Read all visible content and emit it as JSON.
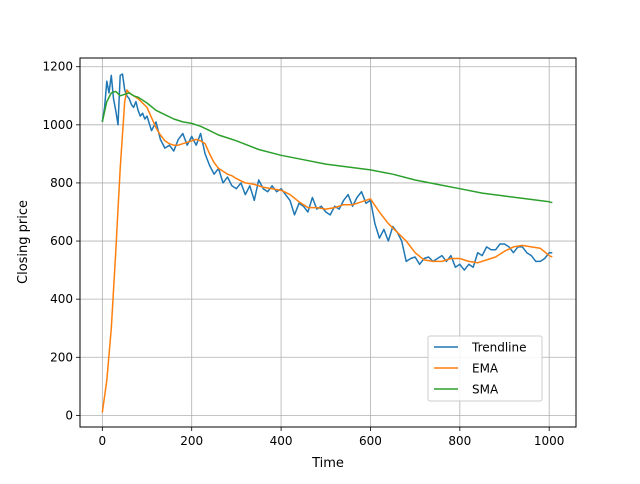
{
  "chart_data": {
    "type": "line",
    "title": "",
    "xlabel": "Time",
    "ylabel": "Closing price",
    "xlim": [
      -50,
      1060
    ],
    "ylim": [
      -40,
      1230
    ],
    "x_ticks": [
      0,
      200,
      400,
      600,
      800,
      1000
    ],
    "y_ticks": [
      0,
      200,
      400,
      600,
      800,
      1000,
      1200
    ],
    "grid": true,
    "legend_position": "lower-right",
    "series": [
      {
        "name": "Trendline",
        "color": "#1f77b4",
        "x": [
          0,
          5,
          10,
          15,
          20,
          25,
          30,
          35,
          40,
          45,
          50,
          55,
          60,
          65,
          70,
          75,
          80,
          85,
          90,
          95,
          100,
          110,
          120,
          130,
          140,
          150,
          160,
          170,
          180,
          190,
          200,
          210,
          220,
          230,
          240,
          250,
          260,
          270,
          280,
          290,
          300,
          310,
          320,
          330,
          340,
          350,
          360,
          370,
          380,
          390,
          400,
          410,
          420,
          430,
          440,
          450,
          460,
          470,
          480,
          490,
          500,
          510,
          520,
          530,
          540,
          550,
          560,
          570,
          580,
          590,
          600,
          610,
          620,
          630,
          640,
          650,
          660,
          670,
          680,
          690,
          700,
          710,
          720,
          730,
          740,
          750,
          760,
          770,
          780,
          790,
          800,
          810,
          820,
          830,
          840,
          850,
          860,
          870,
          880,
          890,
          900,
          910,
          920,
          930,
          940,
          950,
          960,
          970,
          980,
          990,
          1000,
          1007
        ],
        "values": [
          1010,
          1060,
          1150,
          1110,
          1170,
          1090,
          1050,
          1000,
          1170,
          1175,
          1120,
          1100,
          1090,
          1070,
          1060,
          1080,
          1050,
          1030,
          1040,
          1020,
          1030,
          980,
          1010,
          950,
          920,
          930,
          910,
          950,
          970,
          930,
          960,
          930,
          970,
          900,
          860,
          830,
          850,
          800,
          820,
          790,
          780,
          800,
          760,
          790,
          740,
          810,
          780,
          770,
          790,
          770,
          780,
          760,
          740,
          690,
          730,
          720,
          700,
          750,
          710,
          720,
          700,
          690,
          720,
          710,
          740,
          760,
          720,
          750,
          770,
          730,
          740,
          660,
          610,
          640,
          600,
          650,
          630,
          600,
          530,
          540,
          545,
          520,
          540,
          545,
          530,
          540,
          550,
          530,
          550,
          510,
          520,
          500,
          520,
          510,
          560,
          550,
          580,
          570,
          570,
          590,
          590,
          580,
          560,
          580,
          580,
          560,
          550,
          530,
          530,
          540,
          560,
          560
        ]
      },
      {
        "name": "EMA",
        "color": "#ff7f0e",
        "x": [
          0,
          10,
          20,
          30,
          40,
          50,
          55,
          60,
          70,
          80,
          90,
          100,
          110,
          120,
          130,
          140,
          150,
          160,
          170,
          180,
          190,
          200,
          210,
          220,
          230,
          240,
          250,
          260,
          270,
          280,
          290,
          300,
          320,
          340,
          360,
          380,
          400,
          420,
          440,
          460,
          480,
          500,
          520,
          540,
          560,
          580,
          600,
          620,
          640,
          660,
          680,
          700,
          720,
          740,
          760,
          780,
          800,
          820,
          840,
          860,
          880,
          900,
          920,
          940,
          960,
          980,
          1000,
          1007
        ],
        "values": [
          10,
          120,
          300,
          560,
          850,
          1080,
          1120,
          1110,
          1100,
          1090,
          1075,
          1060,
          1025,
          990,
          965,
          945,
          935,
          930,
          930,
          935,
          940,
          945,
          950,
          945,
          935,
          900,
          870,
          850,
          840,
          830,
          825,
          815,
          800,
          795,
          785,
          780,
          775,
          760,
          735,
          715,
          715,
          710,
          715,
          725,
          725,
          735,
          745,
          700,
          660,
          630,
          600,
          560,
          535,
          530,
          530,
          540,
          540,
          530,
          525,
          535,
          545,
          565,
          580,
          585,
          580,
          575,
          550,
          545
        ]
      },
      {
        "name": "SMA",
        "color": "#2ca02c",
        "x": [
          0,
          10,
          20,
          30,
          40,
          50,
          60,
          70,
          80,
          90,
          100,
          120,
          140,
          160,
          180,
          200,
          220,
          240,
          260,
          280,
          300,
          350,
          400,
          450,
          500,
          550,
          600,
          650,
          700,
          750,
          800,
          850,
          900,
          950,
          1000,
          1007
        ],
        "values": [
          1010,
          1080,
          1110,
          1115,
          1100,
          1105,
          1110,
          1100,
          1095,
          1085,
          1075,
          1050,
          1035,
          1020,
          1010,
          1005,
          995,
          980,
          965,
          955,
          945,
          915,
          895,
          880,
          865,
          855,
          845,
          830,
          810,
          795,
          780,
          765,
          755,
          745,
          735,
          732
        ]
      }
    ]
  }
}
